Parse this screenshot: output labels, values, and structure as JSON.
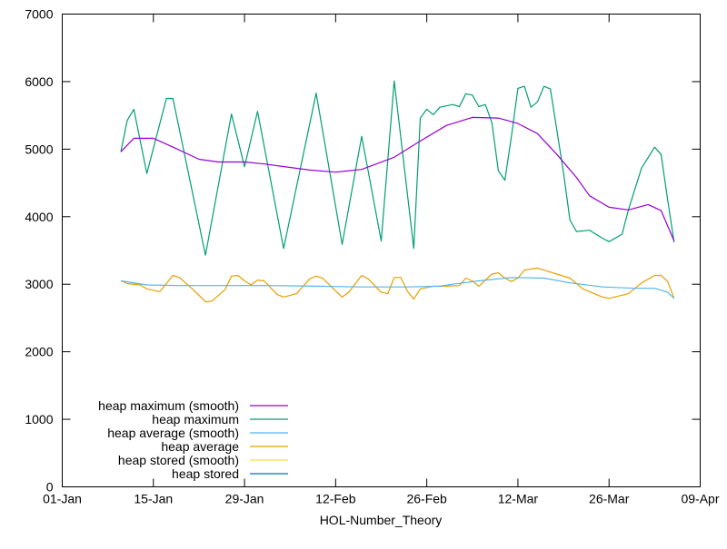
{
  "chart_data": {
    "type": "line",
    "title": "",
    "xlabel": "HOL-Number_Theory",
    "ylabel": "",
    "ylim": [
      0,
      7000
    ],
    "xlim": [
      "01-Jan",
      "09-Apr"
    ],
    "yticks": [
      "0",
      "1000",
      "2000",
      "3000",
      "4000",
      "5000",
      "6000",
      "7000"
    ],
    "xticks": [
      "01-Jan",
      "15-Jan",
      "29-Jan",
      "12-Feb",
      "26-Feb",
      "12-Mar",
      "26-Mar",
      "09-Apr"
    ],
    "grid": false,
    "legend_placement": "bottom-left",
    "series": [
      {
        "name": "heap maximum (smooth)",
        "color": "#9400d3",
        "x": [
          "Jan-10",
          "Jan-12",
          "Jan-15",
          "Jan-18",
          "Jan-22",
          "Jan-25",
          "Jan-29",
          "Feb-01",
          "Feb-05",
          "Feb-08",
          "Feb-12",
          "Feb-16",
          "Feb-21",
          "Feb-25",
          "Mar-01",
          "Mar-05",
          "Mar-09",
          "Mar-12",
          "Mar-15",
          "Mar-18",
          "Mar-21",
          "Mar-23",
          "Mar-26",
          "Mar-29",
          "Apr-01",
          "Apr-03",
          "Apr-05"
        ],
        "y": [
          4960,
          5160,
          5160,
          5030,
          4850,
          4810,
          4810,
          4780,
          4730,
          4690,
          4660,
          4700,
          4880,
          5120,
          5350,
          5470,
          5460,
          5380,
          5230,
          4920,
          4580,
          4310,
          4140,
          4100,
          4180,
          4090,
          3640
        ]
      },
      {
        "name": "heap maximum",
        "color": "#009e73",
        "x": [
          "Jan-10",
          "Jan-11",
          "Jan-12",
          "Jan-14",
          "Jan-17",
          "Jan-18",
          "Jan-23",
          "Jan-27",
          "Jan-29",
          "Jan-31",
          "Feb-04",
          "Feb-09",
          "Feb-13",
          "Feb-16",
          "Feb-19",
          "Feb-21",
          "Feb-24",
          "Feb-25",
          "Feb-26",
          "Feb-27",
          "Feb-28",
          "Mar-02",
          "Mar-03",
          "Mar-04",
          "Mar-05",
          "Mar-06",
          "Mar-07",
          "Mar-08",
          "Mar-09",
          "Mar-10",
          "Mar-11",
          "Mar-12",
          "Mar-13",
          "Mar-14",
          "Mar-15",
          "Mar-16",
          "Mar-17",
          "Mar-19",
          "Mar-20",
          "Mar-21",
          "Mar-23",
          "Mar-25",
          "Mar-26",
          "Mar-28",
          "Mar-29",
          "Mar-31",
          "Apr-02",
          "Apr-03",
          "Apr-04",
          "Apr-05"
        ],
        "y": [
          4960,
          5430,
          5590,
          4640,
          5750,
          5750,
          3430,
          5520,
          4740,
          5560,
          3530,
          5830,
          3590,
          5190,
          3640,
          6010,
          3530,
          5460,
          5590,
          5510,
          5620,
          5660,
          5630,
          5820,
          5800,
          5630,
          5660,
          5390,
          4680,
          4540,
          5190,
          5900,
          5930,
          5620,
          5700,
          5930,
          5890,
          4650,
          3950,
          3780,
          3800,
          3680,
          3630,
          3740,
          4110,
          4720,
          5030,
          4920,
          4250,
          3620
        ]
      },
      {
        "name": "heap average (smooth)",
        "color": "#56b4e9",
        "x": [
          "Jan-10",
          "Jan-14",
          "Jan-19",
          "Jan-28",
          "Feb-02",
          "Feb-09",
          "Feb-16",
          "Feb-23",
          "Feb-28",
          "Mar-02",
          "Mar-06",
          "Mar-11",
          "Mar-16",
          "Mar-20",
          "Mar-25",
          "Mar-30",
          "Apr-02",
          "Apr-04",
          "Apr-05"
        ],
        "y": [
          3050,
          2990,
          2980,
          2980,
          2980,
          2970,
          2960,
          2960,
          2970,
          3000,
          3050,
          3100,
          3090,
          3020,
          2960,
          2940,
          2940,
          2880,
          2790
        ]
      },
      {
        "name": "heap average",
        "color": "#e69f00",
        "x": [
          "Jan-10",
          "Jan-11",
          "Jan-13",
          "Jan-14",
          "Jan-16",
          "Jan-18",
          "Jan-19",
          "Jan-21",
          "Jan-23",
          "Jan-24",
          "Jan-26",
          "Jan-27",
          "Jan-28",
          "Jan-29",
          "Jan-30",
          "Jan-31",
          "Feb-01",
          "Feb-03",
          "Feb-04",
          "Feb-06",
          "Feb-08",
          "Feb-09",
          "Feb-10",
          "Feb-12",
          "Feb-13",
          "Feb-14",
          "Feb-16",
          "Feb-17",
          "Feb-19",
          "Feb-20",
          "Feb-21",
          "Feb-22",
          "Feb-23",
          "Feb-24",
          "Feb-25",
          "Feb-27",
          "Mar-01",
          "Mar-03",
          "Mar-04",
          "Mar-05",
          "Mar-06",
          "Mar-08",
          "Mar-09",
          "Mar-10",
          "Mar-11",
          "Mar-12",
          "Mar-13",
          "Mar-15",
          "Mar-17",
          "Mar-20",
          "Mar-22",
          "Mar-25",
          "Mar-26",
          "Mar-29",
          "Mar-31",
          "Apr-02",
          "Apr-03",
          "Apr-04",
          "Apr-05"
        ],
        "y": [
          3050,
          3010,
          2990,
          2930,
          2890,
          3130,
          3100,
          2930,
          2740,
          2750,
          2920,
          3120,
          3130,
          3050,
          2990,
          3060,
          3050,
          2850,
          2810,
          2860,
          3080,
          3120,
          3090,
          2900,
          2810,
          2880,
          3130,
          3080,
          2880,
          2860,
          3100,
          3100,
          2900,
          2780,
          2930,
          2970,
          2970,
          2980,
          3090,
          3050,
          2970,
          3150,
          3170,
          3090,
          3040,
          3090,
          3210,
          3240,
          3180,
          3090,
          2930,
          2810,
          2790,
          2860,
          3020,
          3130,
          3130,
          3040,
          2790
        ]
      },
      {
        "name": "heap stored (smooth)",
        "color": "#f0e442",
        "x": [],
        "y": []
      },
      {
        "name": "heap stored",
        "color": "#0072b2",
        "x": [],
        "y": []
      }
    ]
  }
}
